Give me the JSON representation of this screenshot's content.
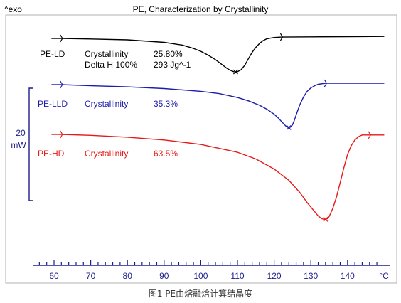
{
  "figure": {
    "caption": "图1 PE由熔融焓计算结晶度",
    "colors": {
      "frame": "#b0b0b0",
      "axis": "#1c1c8c",
      "text": "#000000",
      "caption": "#333333"
    }
  },
  "chart_data": {
    "type": "line",
    "title": "PE, Characterization by Crystallinity",
    "corner_label": "^exo",
    "xlabel": "°C",
    "xlim": [
      55,
      150
    ],
    "xticks": [
      "60",
      "70",
      "80",
      "90",
      "100",
      "110",
      "120",
      "130",
      "140"
    ],
    "xtick_values": [
      60,
      70,
      80,
      90,
      100,
      110,
      120,
      130,
      140
    ],
    "grid": false,
    "scale_bar": {
      "value": "20",
      "unit": "mW",
      "color": "#1c1c8c"
    },
    "ylim": [
      -80,
      10
    ],
    "series": [
      {
        "name": "PE-LD",
        "color": "#000000",
        "info_lines": [
          {
            "label": "Crystallinity",
            "value": "25.80%"
          },
          {
            "label": "Delta H 100%",
            "value": "293 Jg^-1"
          }
        ],
        "integration_limits": [
          62,
          122
        ],
        "peak_marker_x": 109.5,
        "x": [
          62,
          70,
          80,
          90,
          95,
          98,
          100,
          102,
          104,
          106,
          107,
          108,
          109,
          109.5,
          110,
          111,
          112,
          113,
          114,
          115,
          116,
          117,
          118,
          120,
          122,
          130,
          140,
          150
        ],
        "y": [
          0,
          -0.5,
          -1.3,
          -3.5,
          -6,
          -9,
          -11.5,
          -15,
          -19,
          -24,
          -26.5,
          -28.5,
          -29.8,
          -30,
          -29.8,
          -28,
          -24,
          -18,
          -12.5,
          -8,
          -4.5,
          -2,
          -0.3,
          0.8,
          1.2,
          1.4,
          1.6,
          1.8
        ]
      },
      {
        "name": "PE-LLD",
        "color": "#1c1cab",
        "info_lines": [
          {
            "label": "Crystallinity",
            "value": "35.3%"
          }
        ],
        "integration_limits": [
          62,
          134
        ],
        "peak_marker_x": 124,
        "x": [
          62,
          70,
          80,
          90,
          100,
          105,
          110,
          113,
          116,
          118,
          120,
          121,
          122,
          123,
          123.5,
          124,
          124.5,
          125,
          125.5,
          126,
          127,
          128,
          129,
          130,
          131,
          132,
          134,
          140,
          150
        ],
        "y": [
          0,
          -1,
          -2,
          -3.5,
          -6,
          -8,
          -11.5,
          -14.5,
          -18.5,
          -22,
          -26.5,
          -29.5,
          -33,
          -36.5,
          -38,
          -38.5,
          -38,
          -36,
          -32,
          -27,
          -18,
          -11,
          -6,
          -3,
          -1,
          0.3,
          1.2,
          1.3,
          1.3
        ]
      },
      {
        "name": "PE-HD",
        "color": "#e81818",
        "info_lines": [
          {
            "label": "Crystallinity",
            "value": "63.5%"
          }
        ],
        "integration_limits": [
          62,
          146
        ],
        "peak_marker_x": 134,
        "x": [
          62,
          70,
          80,
          90,
          100,
          110,
          115,
          120,
          124,
          127,
          129,
          131,
          132,
          133,
          133.5,
          134,
          134.5,
          135,
          136,
          137,
          138,
          139,
          140,
          141,
          142,
          143,
          144,
          146,
          150
        ],
        "y": [
          0,
          -0.8,
          -2.5,
          -5,
          -9,
          -16,
          -22,
          -31,
          -41,
          -52,
          -61,
          -69,
          -73,
          -75.5,
          -76,
          -76,
          -75.5,
          -73.5,
          -66,
          -56,
          -43,
          -30,
          -18,
          -10,
          -5,
          -2,
          -0.5,
          -0.5,
          -0.5
        ]
      }
    ]
  }
}
